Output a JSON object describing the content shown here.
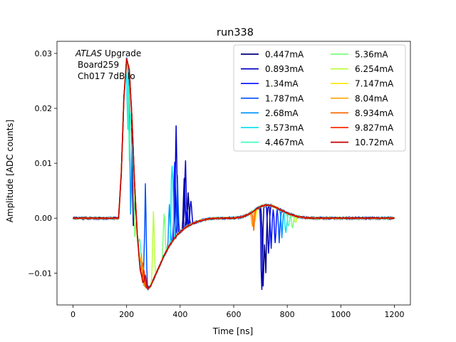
{
  "chart_data": {
    "type": "line",
    "title": "run338",
    "xlabel": "Time [ns]",
    "ylabel": "Amplitude [ADC counts]",
    "xlim": [
      -60,
      1260
    ],
    "ylim": [
      -0.0158,
      0.0322
    ],
    "xticks": [
      0,
      200,
      400,
      600,
      800,
      1000,
      1200
    ],
    "xtick_labels": [
      "0",
      "200",
      "400",
      "600",
      "800",
      "1000",
      "1200"
    ],
    "yticks": [
      -0.01,
      0.0,
      0.01,
      0.02,
      0.03
    ],
    "ytick_labels": [
      "−0.01",
      "0.00",
      "0.01",
      "0.02",
      "0.03"
    ],
    "grid": false,
    "legend_position": "top-right",
    "legend_columns": 2,
    "annotation": {
      "line1_italic": "ATLAS",
      "line1_rest": " Upgrade",
      "line2": "Board259",
      "line3": "Ch017 7dB lo"
    },
    "base_pulse": {
      "x": [
        0,
        170,
        180,
        190,
        200,
        210,
        220,
        230,
        240,
        250,
        260,
        270,
        280,
        290,
        300,
        320,
        340,
        360,
        380,
        400,
        420,
        450,
        480,
        510,
        540,
        570,
        600,
        630,
        660,
        680,
        700,
        720,
        740,
        760,
        780,
        800,
        830,
        860,
        900,
        950,
        1000,
        1050,
        1100,
        1150,
        1200
      ],
      "y": [
        0.0,
        0.0,
        0.008,
        0.022,
        0.029,
        0.027,
        0.018,
        0.006,
        -0.003,
        -0.009,
        -0.0115,
        -0.0125,
        -0.0128,
        -0.0123,
        -0.0112,
        -0.009,
        -0.0068,
        -0.005,
        -0.0036,
        -0.0025,
        -0.0017,
        -0.0009,
        -0.0004,
        -0.0001,
        0.0,
        0.0,
        0.0,
        0.0002,
        0.0008,
        0.0015,
        0.0021,
        0.0024,
        0.0023,
        0.0019,
        0.0014,
        0.0009,
        0.0004,
        0.0001,
        0.0,
        0.0,
        0.0,
        0.0,
        0.0,
        0.0,
        0.0
      ]
    },
    "series": [
      {
        "name": "0.447mA",
        "color": "#00007f",
        "spikes": [
          [
            225,
            -0.004
          ],
          [
            415,
            0.006
          ],
          [
            430,
            0.004
          ],
          [
            710,
            -0.0135
          ],
          [
            720,
            -0.008
          ]
        ]
      },
      {
        "name": "0.893mA",
        "color": "#0000c8",
        "spikes": [
          [
            385,
            0.014
          ],
          [
            420,
            0.009
          ],
          [
            440,
            0.003
          ],
          [
            705,
            -0.012
          ],
          [
            730,
            -0.007
          ]
        ]
      },
      {
        "name": "1.34mA",
        "color": "#0010ff",
        "spikes": [
          [
            380,
            0.01
          ],
          [
            425,
            0.002
          ],
          [
            740,
            -0.006
          ],
          [
            755,
            -0.004
          ]
        ]
      },
      {
        "name": "1.787mA",
        "color": "#0050ff",
        "spikes": [
          [
            270,
            0.005
          ],
          [
            390,
            0.006
          ],
          [
            770,
            -0.004
          ]
        ]
      },
      {
        "name": "2.68mA",
        "color": "#0094ff",
        "spikes": [
          [
            215,
            0.0
          ],
          [
            360,
            0.002
          ],
          [
            780,
            -0.003
          ]
        ]
      },
      {
        "name": "3.573mA",
        "color": "#10e0ef",
        "spikes": [
          [
            205,
            0.015
          ],
          [
            370,
            0.01
          ],
          [
            795,
            -0.003
          ]
        ]
      },
      {
        "name": "4.467mA",
        "color": "#42ffbd",
        "spikes": [
          [
            210,
            0.011
          ],
          [
            250,
            -0.003
          ],
          [
            805,
            -0.002
          ]
        ]
      },
      {
        "name": "5.36mA",
        "color": "#7dff7a",
        "spikes": [
          [
            230,
            -0.002
          ],
          [
            340,
            0.002
          ],
          [
            820,
            -0.002
          ]
        ]
      },
      {
        "name": "6.254mA",
        "color": "#baff3c",
        "spikes": [
          [
            240,
            -0.004
          ],
          [
            300,
            0.001
          ],
          [
            830,
            -0.001
          ]
        ]
      },
      {
        "name": "7.147mA",
        "color": "#ffe600",
        "spikes": [
          [
            245,
            -0.006
          ],
          [
            680,
            -0.001
          ]
        ]
      },
      {
        "name": "8.04mA",
        "color": "#ffa600",
        "spikes": [
          [
            255,
            -0.007
          ],
          [
            670,
            -0.0015
          ]
        ]
      },
      {
        "name": "8.934mA",
        "color": "#ff6800",
        "spikes": [
          [
            260,
            -0.008
          ],
          [
            675,
            -0.002
          ]
        ]
      },
      {
        "name": "9.827mA",
        "color": "#ff2a00",
        "spikes": [
          [
            265,
            -0.009
          ]
        ]
      },
      {
        "name": "10.72mA",
        "color": "#c40000",
        "spikes": [
          [
            270,
            -0.01
          ]
        ]
      }
    ]
  }
}
